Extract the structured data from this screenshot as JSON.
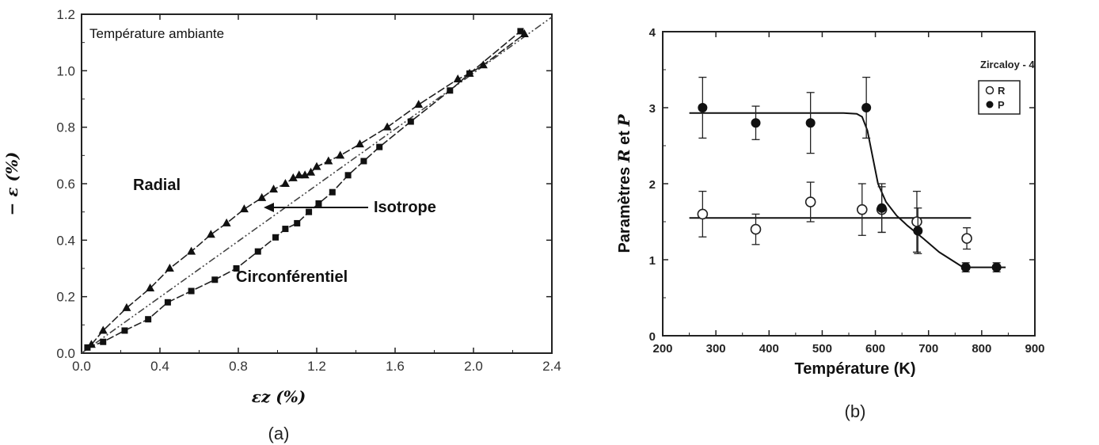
{
  "chart_data": [
    {
      "type": "line",
      "panel_label": "(a)",
      "xlabel": "εz (%)",
      "ylabel": "− ε (%)",
      "xlim": [
        0.0,
        2.4
      ],
      "ylim": [
        0.0,
        1.2
      ],
      "x_ticks": [
        "0.0",
        "0.4",
        "0.8",
        "1.2",
        "1.6",
        "2.0",
        "2.4"
      ],
      "y_ticks": [
        "0.0",
        "0.2",
        "0.4",
        "0.6",
        "0.8",
        "1.0",
        "1.2"
      ],
      "annotations": {
        "condition": "Température ambiante",
        "radial": "Radial",
        "isotrope": "Isotrope",
        "circ": "Circonférentiel"
      },
      "series": [
        {
          "name": "Radial",
          "marker": "triangle",
          "x": [
            0.05,
            0.11,
            0.23,
            0.35,
            0.45,
            0.56,
            0.66,
            0.74,
            0.83,
            0.92,
            0.98,
            1.04,
            1.08,
            1.11,
            1.14,
            1.17,
            1.2,
            1.26,
            1.32,
            1.42,
            1.56,
            1.72,
            1.92,
            1.98,
            2.05,
            2.26
          ],
          "y": [
            0.03,
            0.08,
            0.16,
            0.23,
            0.3,
            0.36,
            0.42,
            0.46,
            0.51,
            0.55,
            0.58,
            0.6,
            0.62,
            0.63,
            0.63,
            0.64,
            0.66,
            0.68,
            0.7,
            0.74,
            0.8,
            0.88,
            0.97,
            0.99,
            1.02,
            1.13
          ],
          "color": "#222222"
        },
        {
          "name": "Isotrope",
          "marker": "none",
          "x": [
            0.0,
            2.4
          ],
          "y": [
            0.0,
            1.19
          ],
          "color": "#444444"
        },
        {
          "name": "Circonférentiel",
          "marker": "square",
          "x": [
            0.03,
            0.11,
            0.22,
            0.34,
            0.44,
            0.56,
            0.68,
            0.79,
            0.9,
            0.99,
            1.04,
            1.1,
            1.16,
            1.21,
            1.28,
            1.36,
            1.44,
            1.52,
            1.68,
            1.88,
            1.98,
            2.24
          ],
          "y": [
            0.02,
            0.04,
            0.08,
            0.12,
            0.18,
            0.22,
            0.26,
            0.3,
            0.36,
            0.41,
            0.44,
            0.46,
            0.5,
            0.53,
            0.57,
            0.63,
            0.68,
            0.73,
            0.82,
            0.93,
            0.99,
            1.14
          ],
          "color": "#222222"
        }
      ]
    },
    {
      "type": "scatter",
      "panel_label": "(b)",
      "xlabel": "Température (K)",
      "ylabel_parts": [
        "Paramètres ",
        "R",
        " et ",
        "P"
      ],
      "xlim": [
        200,
        900
      ],
      "ylim": [
        0,
        4
      ],
      "x_ticks": [
        "200",
        "300",
        "400",
        "500",
        "600",
        "700",
        "800",
        "900"
      ],
      "y_ticks": [
        "0",
        "1",
        "2",
        "3",
        "4"
      ],
      "legend": {
        "title": "Zircaloy - 4",
        "items": [
          "R",
          "P"
        ],
        "position": "top-right"
      },
      "series": [
        {
          "name": "R",
          "marker": "open-circle",
          "x": [
            275,
            375,
            478,
            575,
            612,
            678,
            772
          ],
          "y": [
            1.6,
            1.4,
            1.76,
            1.66,
            1.66,
            1.5,
            1.28
          ],
          "err": [
            0.3,
            0.2,
            0.26,
            0.34,
            0.3,
            0.4,
            0.14
          ]
        },
        {
          "name": "P",
          "marker": "filled-circle",
          "x": [
            275,
            375,
            478,
            583,
            612,
            680,
            770,
            828
          ],
          "y": [
            3.0,
            2.8,
            2.8,
            3.0,
            1.68,
            1.38,
            0.9,
            0.9
          ],
          "err": [
            0.4,
            0.22,
            0.4,
            0.4,
            0.32,
            0.3,
            0.06,
            0.06
          ]
        }
      ],
      "fit_lines": {
        "R": {
          "x": [
            250,
            780
          ],
          "y": [
            1.55,
            1.55
          ]
        },
        "P": {
          "x": [
            250,
            540,
            565,
            575,
            585,
            595,
            605,
            620,
            640,
            660,
            690,
            720,
            765,
            845
          ],
          "y": [
            2.93,
            2.93,
            2.92,
            2.88,
            2.7,
            2.35,
            2.0,
            1.76,
            1.58,
            1.45,
            1.28,
            1.1,
            0.9,
            0.9
          ]
        }
      }
    }
  ]
}
